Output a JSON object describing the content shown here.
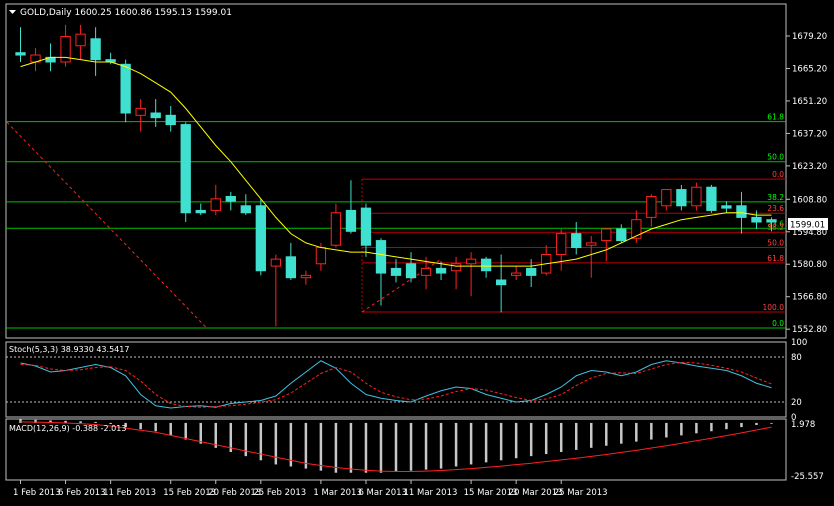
{
  "colors": {
    "background": "#000000",
    "frame": "#c0c0c0",
    "bull_fill": "#000000",
    "bull_outline": "#ff2020",
    "bear_fill": "#40e0d0",
    "bear_outline": "#40e0d0",
    "wick": "#ff2020",
    "ma": "#ffff00",
    "green_fib": "#00c000",
    "green_fib_label": "#00ff00",
    "red_fib": "#c00000",
    "red_fib_label": "#ff4040",
    "trend": "#ff2020",
    "stoch_main": "#40c0e0",
    "stoch_signal": "#ff2020",
    "macd_hist": "#c8c8c8",
    "macd_signal": "#ff2020",
    "text": "#ffffff",
    "price_label_bg": "#ffffff",
    "price_label_text": "#000000"
  },
  "main": {
    "header": "GOLD,Daily  1600.25 1600.86 1595.13 1599.01",
    "current_price_label": "1599.01"
  },
  "chart_data": [
    {
      "type": "candlestick",
      "symbol": "GOLD",
      "timeframe": "Daily",
      "ylim": [
        1549,
        1693
      ],
      "y_ticks": [
        1679.2,
        1665.2,
        1651.2,
        1637.2,
        1623.2,
        1608.8,
        1594.8,
        1580.8,
        1566.8,
        1552.8
      ],
      "y_tick_labels": [
        "1679.20",
        "1665.20",
        "1651.20",
        "1637.20",
        "1623.20",
        "1608.80",
        "1594.80",
        "1580.80",
        "1566.80",
        "1552.80"
      ],
      "x_ticks": [
        {
          "label": "1 Feb 2013",
          "index": 0
        },
        {
          "label": "6 Feb 2013",
          "index": 3
        },
        {
          "label": "11 Feb 2013",
          "index": 6
        },
        {
          "label": "15 Feb 2013",
          "index": 10
        },
        {
          "label": "20 Feb 2013",
          "index": 13
        },
        {
          "label": "25 Feb 2013",
          "index": 16
        },
        {
          "label": "1 Mar 2013",
          "index": 20
        },
        {
          "label": "6 Mar 2013",
          "index": 23
        },
        {
          "label": "11 Mar 2013",
          "index": 26
        },
        {
          "label": "15 Mar 2013",
          "index": 30
        },
        {
          "label": "20 Mar 2013",
          "index": 33
        },
        {
          "label": "25 Mar 2013",
          "index": 36
        }
      ],
      "candles": [
        {
          "o": 1672,
          "h": 1683,
          "l": 1668,
          "c": 1671
        },
        {
          "o": 1668,
          "h": 1674,
          "l": 1664,
          "c": 1671
        },
        {
          "o": 1670,
          "h": 1676,
          "l": 1664,
          "c": 1668
        },
        {
          "o": 1668,
          "h": 1684,
          "l": 1666,
          "c": 1679
        },
        {
          "o": 1675,
          "h": 1684,
          "l": 1669,
          "c": 1680
        },
        {
          "o": 1678,
          "h": 1683,
          "l": 1662,
          "c": 1669
        },
        {
          "o": 1669,
          "h": 1672,
          "l": 1667,
          "c": 1668
        },
        {
          "o": 1667,
          "h": 1669,
          "l": 1642,
          "c": 1646
        },
        {
          "o": 1645,
          "h": 1652,
          "l": 1638,
          "c": 1648
        },
        {
          "o": 1646,
          "h": 1652,
          "l": 1640,
          "c": 1644
        },
        {
          "o": 1645,
          "h": 1649,
          "l": 1638,
          "c": 1641
        },
        {
          "o": 1641,
          "h": 1642,
          "l": 1599,
          "c": 1603
        },
        {
          "o": 1604,
          "h": 1607,
          "l": 1602,
          "c": 1603
        },
        {
          "o": 1604,
          "h": 1615,
          "l": 1602,
          "c": 1609
        },
        {
          "o": 1610,
          "h": 1612,
          "l": 1604,
          "c": 1608
        },
        {
          "o": 1606,
          "h": 1611,
          "l": 1602,
          "c": 1603
        },
        {
          "o": 1606,
          "h": 1609,
          "l": 1576,
          "c": 1578
        },
        {
          "o": 1580,
          "h": 1585,
          "l": 1554,
          "c": 1583
        },
        {
          "o": 1584,
          "h": 1590,
          "l": 1574,
          "c": 1575
        },
        {
          "o": 1575,
          "h": 1578,
          "l": 1572,
          "c": 1576
        },
        {
          "o": 1581,
          "h": 1590,
          "l": 1578,
          "c": 1588
        },
        {
          "o": 1589,
          "h": 1607,
          "l": 1588,
          "c": 1603
        },
        {
          "o": 1604,
          "h": 1617,
          "l": 1594,
          "c": 1595
        },
        {
          "o": 1605,
          "h": 1607,
          "l": 1584,
          "c": 1589
        },
        {
          "o": 1591,
          "h": 1592,
          "l": 1563,
          "c": 1577
        },
        {
          "o": 1579,
          "h": 1583,
          "l": 1573,
          "c": 1576
        },
        {
          "o": 1581,
          "h": 1586,
          "l": 1573,
          "c": 1575
        },
        {
          "o": 1576,
          "h": 1584,
          "l": 1570,
          "c": 1579
        },
        {
          "o": 1579,
          "h": 1582,
          "l": 1574,
          "c": 1577
        },
        {
          "o": 1578,
          "h": 1584,
          "l": 1570,
          "c": 1581
        },
        {
          "o": 1581,
          "h": 1586,
          "l": 1567,
          "c": 1583
        },
        {
          "o": 1583,
          "h": 1584,
          "l": 1575,
          "c": 1578
        },
        {
          "o": 1574,
          "h": 1585,
          "l": 1560,
          "c": 1572
        },
        {
          "o": 1576,
          "h": 1580,
          "l": 1574,
          "c": 1577
        },
        {
          "o": 1579,
          "h": 1583,
          "l": 1571,
          "c": 1576
        },
        {
          "o": 1577,
          "h": 1589,
          "l": 1576,
          "c": 1585
        },
        {
          "o": 1585,
          "h": 1596,
          "l": 1578,
          "c": 1594
        },
        {
          "o": 1594,
          "h": 1599,
          "l": 1585,
          "c": 1588
        },
        {
          "o": 1589,
          "h": 1593,
          "l": 1575,
          "c": 1590
        },
        {
          "o": 1591,
          "h": 1595,
          "l": 1582,
          "c": 1596
        },
        {
          "o": 1596,
          "h": 1598,
          "l": 1590,
          "c": 1591
        },
        {
          "o": 1592,
          "h": 1604,
          "l": 1590,
          "c": 1600
        },
        {
          "o": 1601,
          "h": 1611,
          "l": 1597,
          "c": 1610
        },
        {
          "o": 1606,
          "h": 1613,
          "l": 1604,
          "c": 1613
        },
        {
          "o": 1613,
          "h": 1615,
          "l": 1604,
          "c": 1606
        },
        {
          "o": 1606,
          "h": 1616,
          "l": 1604,
          "c": 1614
        },
        {
          "o": 1614,
          "h": 1615,
          "l": 1603,
          "c": 1604
        },
        {
          "o": 1606,
          "h": 1608,
          "l": 1603,
          "c": 1605
        },
        {
          "o": 1606,
          "h": 1612,
          "l": 1594,
          "c": 1601
        },
        {
          "o": 1601,
          "h": 1604,
          "l": 1596,
          "c": 1599
        },
        {
          "o": 1600,
          "h": 1601,
          "l": 1595,
          "c": 1599
        }
      ],
      "moving_average": [
        1666,
        1668,
        1670,
        1670,
        1669,
        1668,
        1668,
        1666,
        1663,
        1659,
        1655,
        1648,
        1640,
        1632,
        1625,
        1617,
        1609,
        1601,
        1594,
        1590,
        1588,
        1587,
        1586,
        1586,
        1585,
        1584,
        1583,
        1582,
        1581,
        1580,
        1580,
        1580,
        1580,
        1580,
        1580,
        1581,
        1582,
        1583,
        1585,
        1587,
        1590,
        1593,
        1596,
        1598,
        1600,
        1601,
        1602,
        1603,
        1603,
        1602,
        1602
      ],
      "green_fib_levels": [
        {
          "label": "61.8",
          "value": 1642.3
        },
        {
          "label": "50.0",
          "value": 1625.0
        },
        {
          "label": "38.2",
          "value": 1607.7
        },
        {
          "label": "23.6",
          "value": 1596.3
        },
        {
          "label": "0.0",
          "value": 1553.3
        }
      ],
      "red_fib_levels": [
        {
          "label": "0.0",
          "value": 1617.5
        },
        {
          "label": "23.6",
          "value": 1602.8
        },
        {
          "label": "38.2",
          "value": 1594.6
        },
        {
          "label": "50.0",
          "value": 1588.0
        },
        {
          "label": "61.8",
          "value": 1581.4
        },
        {
          "label": "100.0",
          "value": 1560.2
        }
      ]
    },
    {
      "type": "line",
      "name": "Stoch(5,3,3)",
      "header": "Stoch(5,3,3) 38.9330 43.5417",
      "ylim": [
        0,
        100
      ],
      "levels": [
        80,
        20
      ],
      "y_tick_labels": [
        "100",
        "80",
        "20",
        "0"
      ],
      "main": [
        72,
        68,
        60,
        62,
        66,
        70,
        66,
        55,
        30,
        15,
        12,
        14,
        15,
        13,
        18,
        20,
        22,
        28,
        45,
        60,
        75,
        65,
        45,
        30,
        25,
        22,
        20,
        28,
        35,
        40,
        38,
        30,
        25,
        20,
        22,
        30,
        40,
        55,
        62,
        60,
        55,
        60,
        70,
        75,
        72,
        68,
        65,
        62,
        55,
        45,
        39
      ],
      "signal": [
        70,
        69,
        64,
        62,
        63,
        66,
        67,
        62,
        48,
        30,
        18,
        14,
        13,
        14,
        15,
        17,
        20,
        23,
        32,
        45,
        58,
        66,
        60,
        45,
        33,
        27,
        23,
        24,
        28,
        34,
        38,
        36,
        31,
        26,
        22,
        24,
        30,
        42,
        52,
        58,
        59,
        58,
        64,
        70,
        73,
        72,
        69,
        65,
        60,
        52,
        44
      ]
    },
    {
      "type": "bar",
      "name": "MACD(12,26,9)",
      "header": "MACD(12,26,9) -0.388 -2.013",
      "ylim": [
        -27.5,
        1.9
      ],
      "y_tick_labels": [
        "1.978",
        "-25.557"
      ],
      "histogram": [
        2,
        1.5,
        1.2,
        1.0,
        0.8,
        0.5,
        -0.5,
        -2,
        -3,
        -4,
        -6,
        -8,
        -10,
        -12,
        -14,
        -16,
        -18,
        -20,
        -21,
        -22,
        -23,
        -24,
        -24,
        -24,
        -24,
        -23.5,
        -23,
        -22.5,
        -22,
        -21,
        -20,
        -19,
        -18,
        -17,
        -16,
        -15,
        -14,
        -13,
        -12,
        -11,
        -10,
        -9,
        -8,
        -7,
        -6,
        -5,
        -4,
        -3,
        -2,
        -1,
        -0.388
      ],
      "signal": [
        0.5,
        0.4,
        0.2,
        0,
        -0.3,
        -0.8,
        -1.5,
        -2.5,
        -3.5,
        -4.5,
        -6,
        -7.5,
        -9,
        -10.5,
        -12,
        -13.5,
        -15,
        -16.5,
        -18,
        -19.5,
        -20.5,
        -21.5,
        -22.2,
        -22.8,
        -23.2,
        -23.4,
        -23.4,
        -23.2,
        -22.9,
        -22.5,
        -22,
        -21.4,
        -20.8,
        -20.1,
        -19.4,
        -18.6,
        -17.8,
        -17,
        -16.1,
        -15.2,
        -14.2,
        -13.2,
        -12.1,
        -11,
        -9.8,
        -8.6,
        -7.4,
        -6.1,
        -4.8,
        -3.4,
        -2.013
      ]
    }
  ]
}
